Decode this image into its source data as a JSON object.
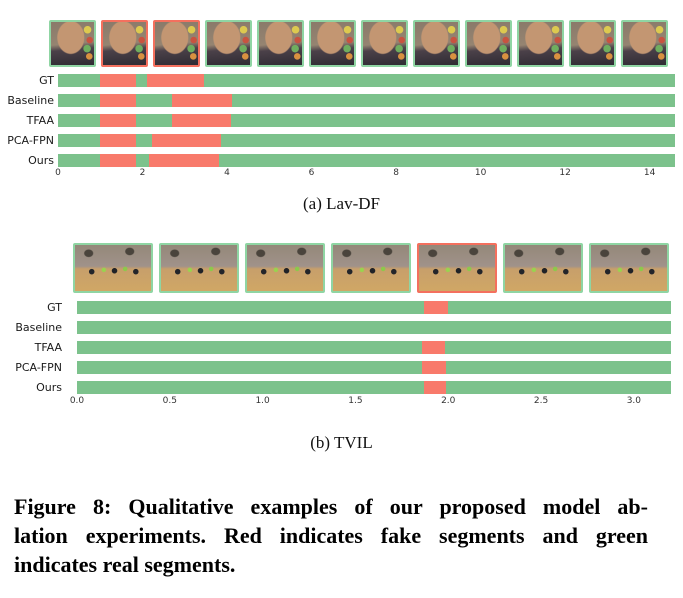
{
  "colors": {
    "real_segment": "#7cc28c",
    "fake_segment": "#f87a6b",
    "real_frame_border": "#8fd5a3",
    "fake_frame_border": "#f4705e",
    "background": "#ffffff"
  },
  "legend_meaning": {
    "red": "fake segments",
    "green": "real segments"
  },
  "chart_data": [
    {
      "type": "bar",
      "title": "(a) Lav-DF",
      "frame_style": "face",
      "frame_borders": [
        "real",
        "fake",
        "fake",
        "real",
        "real",
        "real",
        "real",
        "real",
        "real",
        "real",
        "real",
        "real"
      ],
      "x_axis": {
        "min": 0,
        "max": 14.6,
        "tick_values": [
          0,
          2,
          4,
          6,
          8,
          10,
          12,
          14
        ],
        "tick_labels": [
          "0",
          "2",
          "4",
          "6",
          "8",
          "10",
          "12",
          "14"
        ]
      },
      "rows": [
        {
          "label": "GT",
          "fake_segments": [
            [
              1.0,
              1.85
            ],
            [
              2.1,
              3.45
            ]
          ]
        },
        {
          "label": "Baseline",
          "fake_segments": [
            [
              1.0,
              1.85
            ],
            [
              2.7,
              4.12
            ]
          ]
        },
        {
          "label": "TFAA",
          "fake_segments": [
            [
              1.0,
              1.85
            ],
            [
              2.7,
              4.1
            ]
          ]
        },
        {
          "label": "PCA-FPN",
          "fake_segments": [
            [
              1.0,
              1.85
            ],
            [
              2.23,
              3.85
            ]
          ]
        },
        {
          "label": "Ours",
          "fake_segments": [
            [
              1.0,
              1.85
            ],
            [
              2.15,
              3.8
            ]
          ]
        }
      ]
    },
    {
      "type": "bar",
      "title": "(b) TVIL",
      "frame_style": "gym",
      "frame_borders": [
        "real",
        "real",
        "real",
        "real",
        "fake",
        "real",
        "real"
      ],
      "x_axis": {
        "min": 0,
        "max": 3.2,
        "tick_values": [
          0,
          0.5,
          1.0,
          1.5,
          2.0,
          2.5,
          3.0
        ],
        "tick_labels": [
          "0.0",
          "0.5",
          "1.0",
          "1.5",
          "2.0",
          "2.5",
          "3.0"
        ]
      },
      "rows": [
        {
          "label": "GT",
          "fake_segments": [
            [
              1.87,
              2.0
            ]
          ]
        },
        {
          "label": "Baseline",
          "fake_segments": []
        },
        {
          "label": "TFAA",
          "fake_segments": [
            [
              1.86,
              1.98
            ]
          ]
        },
        {
          "label": "PCA-FPN",
          "fake_segments": [
            [
              1.86,
              1.99
            ]
          ]
        },
        {
          "label": "Ours",
          "fake_segments": [
            [
              1.87,
              1.99
            ]
          ]
        }
      ]
    }
  ],
  "figure_caption": {
    "lines": [
      "Figure 8: Qualitative examples of our proposed model ab-",
      "lation experiments. Red indicates fake segments and green",
      "indicates real segments."
    ]
  }
}
